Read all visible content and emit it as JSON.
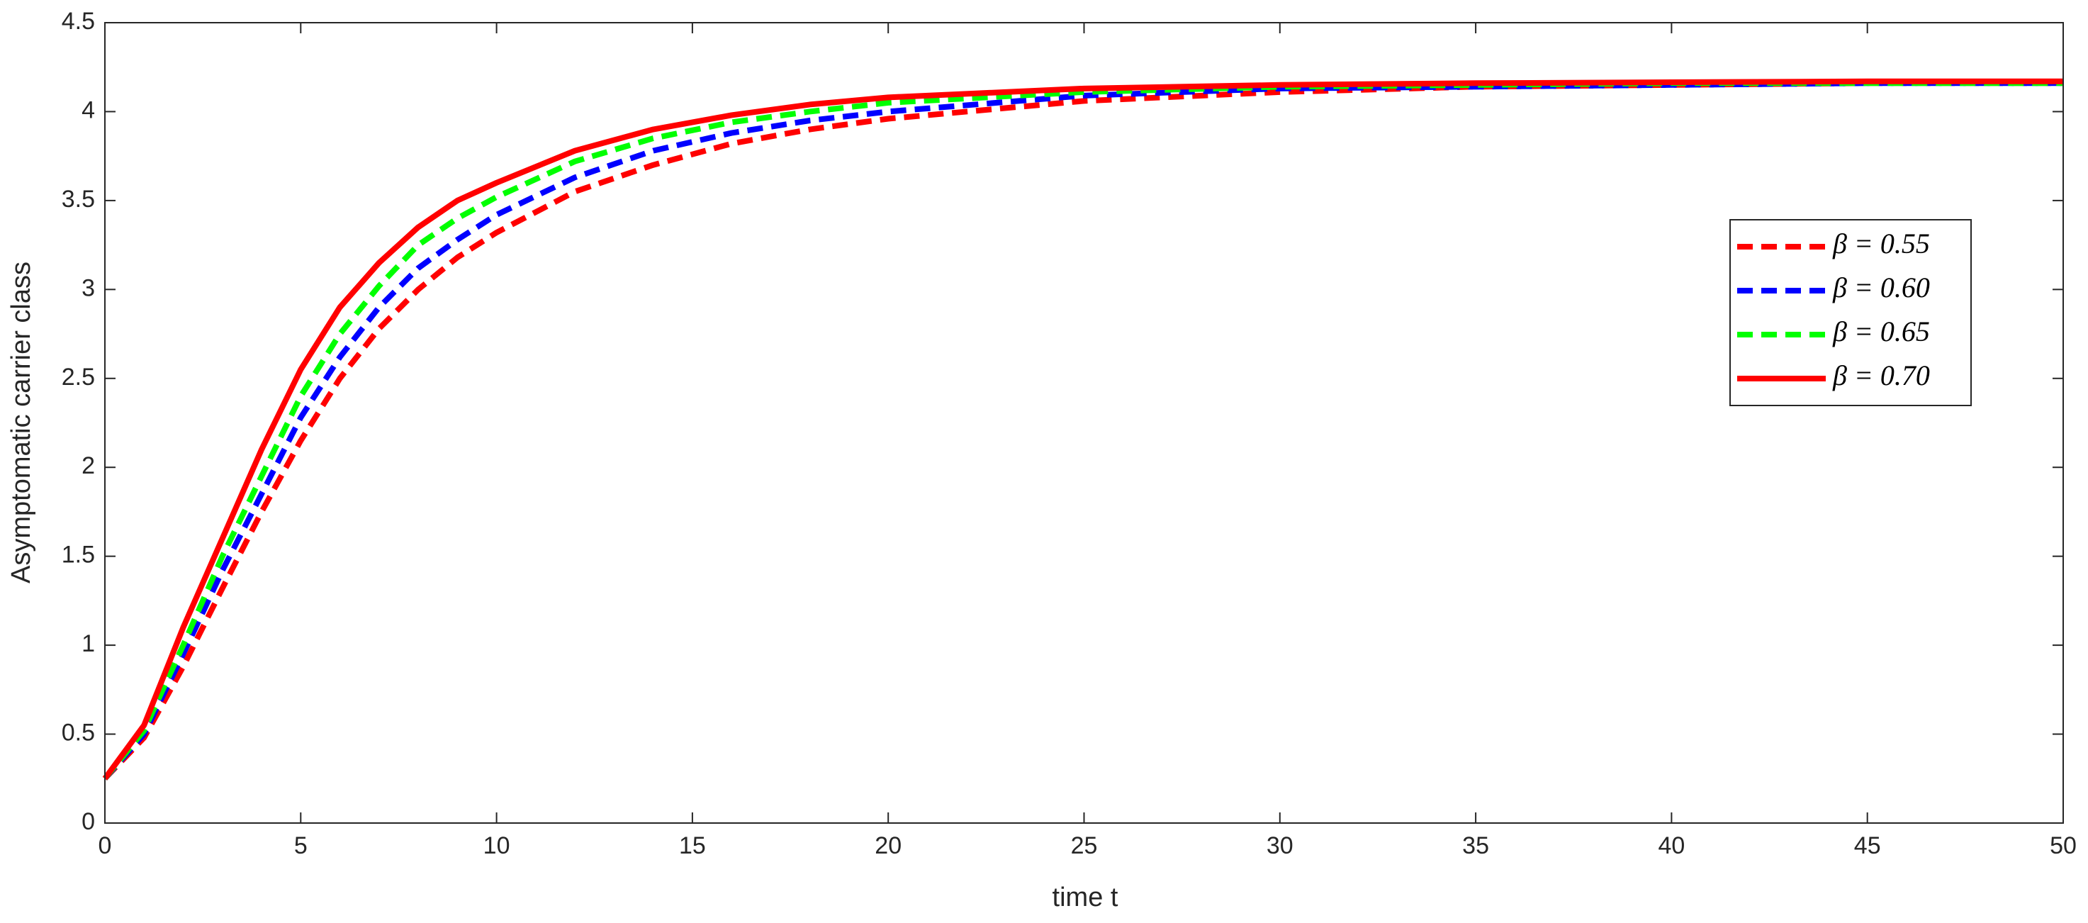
{
  "chart_data": {
    "type": "line",
    "xlabel": "time t",
    "ylabel": "Asymptomatic carrier  class",
    "x": [
      0,
      1,
      2,
      3,
      4,
      5,
      6,
      7,
      8,
      9,
      10,
      12,
      14,
      16,
      18,
      20,
      25,
      30,
      35,
      40,
      45,
      50
    ],
    "series": [
      {
        "name": "β = 0.55",
        "color": "#ff0000",
        "dash": "dashed",
        "values": [
          0.25,
          0.48,
          0.88,
          1.32,
          1.75,
          2.15,
          2.5,
          2.78,
          3.0,
          3.18,
          3.32,
          3.55,
          3.7,
          3.82,
          3.9,
          3.96,
          4.06,
          4.11,
          4.14,
          4.15,
          4.16,
          4.16
        ]
      },
      {
        "name": "β = 0.60",
        "color": "#0000ff",
        "dash": "dashed",
        "values": [
          0.25,
          0.5,
          0.95,
          1.42,
          1.85,
          2.28,
          2.62,
          2.9,
          3.12,
          3.28,
          3.42,
          3.63,
          3.78,
          3.88,
          3.95,
          4.0,
          4.09,
          4.13,
          4.14,
          4.15,
          4.16,
          4.16
        ]
      },
      {
        "name": "β = 0.65",
        "color": "#00ff00",
        "dash": "dashed",
        "values": [
          0.25,
          0.52,
          1.0,
          1.5,
          1.95,
          2.4,
          2.75,
          3.02,
          3.25,
          3.4,
          3.52,
          3.72,
          3.85,
          3.94,
          4.0,
          4.05,
          4.11,
          4.14,
          4.15,
          4.16,
          4.16,
          4.16
        ]
      },
      {
        "name": "β = 0.70",
        "color": "#ff0000",
        "dash": "solid",
        "values": [
          0.25,
          0.55,
          1.1,
          1.6,
          2.1,
          2.55,
          2.9,
          3.15,
          3.35,
          3.5,
          3.6,
          3.78,
          3.9,
          3.98,
          4.04,
          4.08,
          4.13,
          4.15,
          4.16,
          4.165,
          4.17,
          4.17
        ]
      }
    ],
    "xlim": [
      0,
      50
    ],
    "xticks": [
      0,
      5,
      10,
      15,
      20,
      25,
      30,
      35,
      40,
      45,
      50
    ],
    "ylim": [
      0,
      4.5
    ],
    "yticks": [
      0,
      0.5,
      1,
      1.5,
      2,
      2.5,
      3,
      3.5,
      4,
      4.5
    ],
    "grid": false,
    "legend": "upper right"
  }
}
